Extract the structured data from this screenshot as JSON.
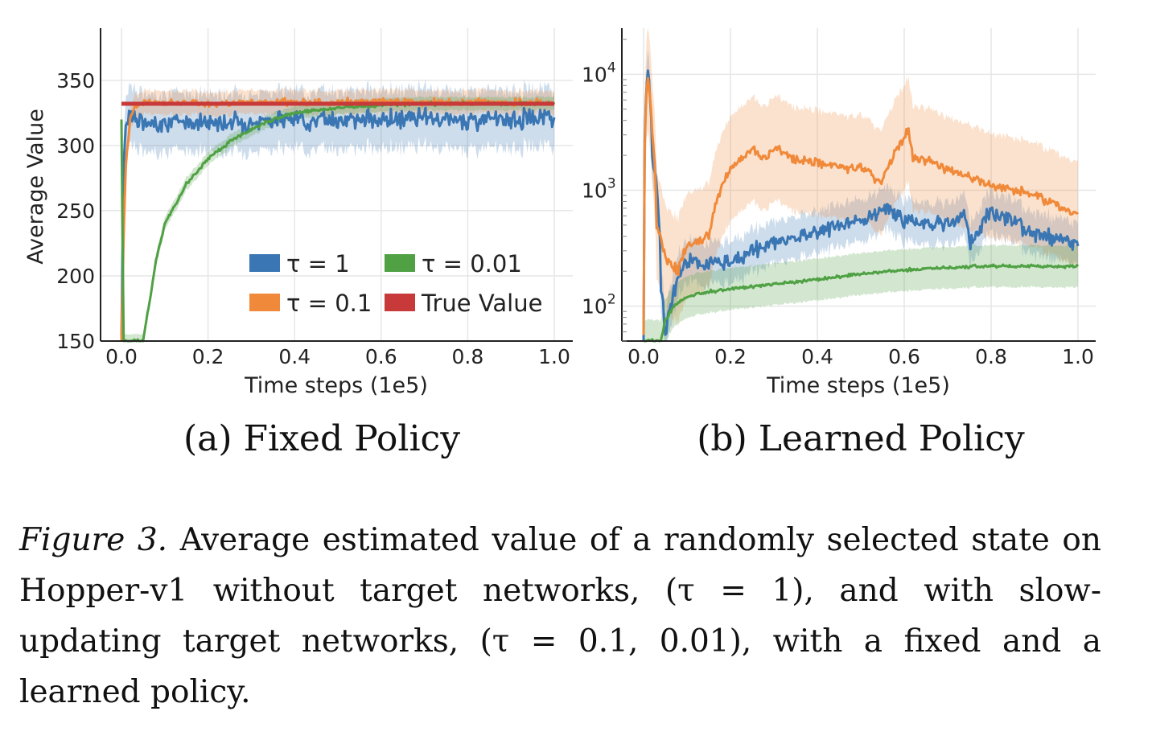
{
  "chart_data": [
    {
      "type": "line",
      "subcaption": "(a) Fixed Policy",
      "xlabel": "Time steps (1e5)",
      "ylabel": "Average Value",
      "xlim": [
        0,
        1.0
      ],
      "ylim": [
        150,
        390
      ],
      "x_ticks": [
        "0.0",
        "0.2",
        "0.4",
        "0.6",
        "0.8",
        "1.0"
      ],
      "y_ticks": [
        "150",
        "200",
        "250",
        "300",
        "350"
      ],
      "grid": true,
      "legend": "bottom-right",
      "series": [
        {
          "name": "τ = 1",
          "color": "#3a76b3",
          "x": [
            0.0,
            0.005,
            0.01,
            0.02,
            0.04,
            0.06,
            0.1,
            0.2,
            0.3,
            0.4,
            0.5,
            0.6,
            0.7,
            0.8,
            0.9,
            1.0
          ],
          "y": [
            150,
            285,
            318,
            326,
            318,
            316,
            318,
            318,
            318,
            320,
            320,
            320,
            320,
            320,
            320,
            322
          ]
        },
        {
          "name": "τ = 0.1",
          "color": "#f08a3a",
          "x": [
            0.0,
            0.005,
            0.01,
            0.02,
            0.03,
            0.05,
            0.1,
            0.2,
            0.3,
            0.4,
            0.5,
            0.6,
            0.7,
            0.8,
            0.9,
            1.0
          ],
          "y": [
            150,
            230,
            285,
            320,
            330,
            333,
            333,
            332,
            333,
            333,
            333,
            334,
            333,
            333,
            333,
            333
          ]
        },
        {
          "name": "τ = 0.01",
          "color": "#4fa144",
          "x": [
            0.0,
            0.005,
            0.05,
            0.08,
            0.1,
            0.15,
            0.2,
            0.25,
            0.3,
            0.35,
            0.4,
            0.5,
            0.6,
            0.7,
            0.8,
            0.9,
            1.0
          ],
          "y": [
            320,
            150,
            150,
            212,
            240,
            270,
            290,
            303,
            312,
            320,
            325,
            329,
            331,
            332,
            332,
            332,
            332
          ]
        },
        {
          "name": "True Value",
          "color": "#c8393a",
          "x": [
            0.0,
            1.0
          ],
          "y": [
            332,
            332
          ]
        }
      ]
    },
    {
      "type": "line",
      "subcaption": "(b) Learned Policy",
      "xlabel": "Time steps (1e5)",
      "ylabel": "",
      "yscale": "log",
      "xlim": [
        0,
        1.0
      ],
      "ylim": [
        50,
        25000
      ],
      "x_ticks": [
        "0.0",
        "0.2",
        "0.4",
        "0.6",
        "0.8",
        "1.0"
      ],
      "grid": true,
      "series": [
        {
          "name": "τ = 1",
          "color": "#3a76b3",
          "x": [
            0.0,
            0.01,
            0.02,
            0.04,
            0.05,
            0.08,
            0.1,
            0.2,
            0.3,
            0.4,
            0.5,
            0.55,
            0.6,
            0.7,
            0.74,
            0.75,
            0.8,
            0.9,
            1.0
          ],
          "y": [
            50,
            11000,
            2000,
            150,
            50,
            180,
            250,
            230,
            350,
            450,
            550,
            700,
            550,
            500,
            650,
            330,
            650,
            420,
            340
          ]
        },
        {
          "name": "τ = 0.1",
          "color": "#f08a3a",
          "x": [
            0.0,
            0.01,
            0.02,
            0.03,
            0.05,
            0.08,
            0.1,
            0.15,
            0.2,
            0.25,
            0.28,
            0.3,
            0.35,
            0.4,
            0.5,
            0.55,
            0.61,
            0.62,
            0.7,
            0.8,
            0.9,
            1.0
          ],
          "y": [
            50,
            9500,
            3000,
            500,
            250,
            200,
            330,
            400,
            1500,
            2200,
            1800,
            2300,
            1800,
            1700,
            1500,
            1200,
            3200,
            2000,
            1500,
            1100,
            900,
            600
          ]
        },
        {
          "name": "τ = 0.01",
          "color": "#4fa144",
          "x": [
            0.0,
            0.04,
            0.05,
            0.07,
            0.1,
            0.15,
            0.2,
            0.3,
            0.4,
            0.5,
            0.6,
            0.7,
            0.8,
            0.9,
            1.0
          ],
          "y": [
            50,
            50,
            75,
            100,
            120,
            135,
            140,
            155,
            170,
            190,
            205,
            215,
            222,
            220,
            222
          ]
        }
      ]
    }
  ],
  "legend_items": [
    {
      "label": "τ = 1",
      "color": "#3a76b3"
    },
    {
      "label": "τ = 0.01",
      "color": "#4fa144"
    },
    {
      "label": "τ = 0.1",
      "color": "#f08a3a"
    },
    {
      "label": "True Value",
      "color": "#c8393a"
    }
  ],
  "log_ticks": [
    {
      "base": "10",
      "exp": "2",
      "value": 100
    },
    {
      "base": "10",
      "exp": "3",
      "value": 1000
    },
    {
      "base": "10",
      "exp": "4",
      "value": 10000
    }
  ],
  "caption": {
    "label": "Figure 3.",
    "text": " Average estimated value of a randomly selected state on Hopper-v1 without target networks, (τ = 1), and with slow-updating target networks, (τ = 0.1, 0.01), with a fixed and a learned policy."
  }
}
